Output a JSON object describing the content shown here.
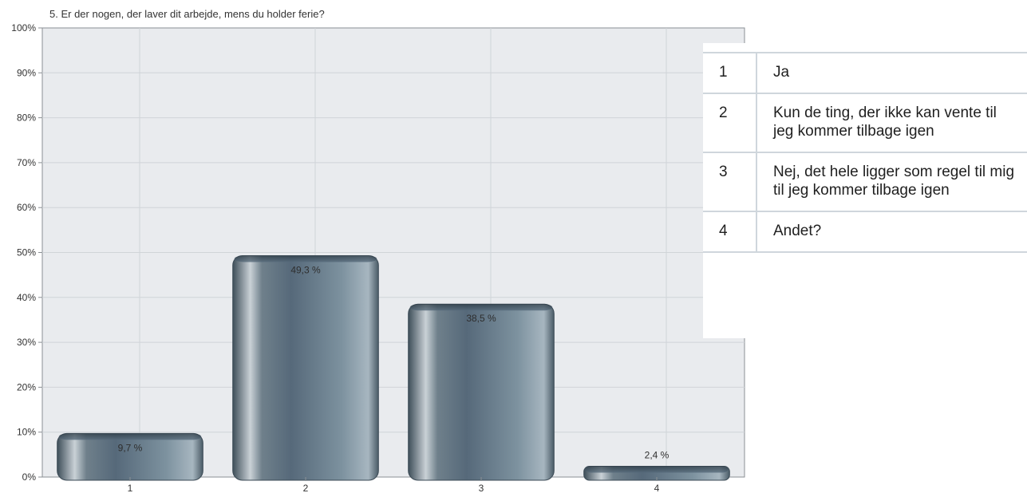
{
  "chart_data": {
    "type": "bar",
    "title": "5. Er der nogen, der laver dit arbejde, mens du holder ferie?",
    "categories": [
      "1",
      "2",
      "3",
      "4"
    ],
    "values": [
      9.7,
      49.3,
      38.5,
      2.4
    ],
    "data_labels": [
      "9,7 %",
      "49,3 %",
      "38,5 %",
      "2,4 %"
    ],
    "ylim": [
      0,
      100
    ],
    "yticks": [
      "0%",
      "10%",
      "20%",
      "30%",
      "40%",
      "50%",
      "60%",
      "70%",
      "80%",
      "90%",
      "100%"
    ],
    "grid": true,
    "colors": {
      "bar": "#5d707d",
      "bar_highlight": "#b9c3ca",
      "plot_bg": "#e9ebee",
      "grid": "#d0d4d8"
    }
  },
  "legend": [
    {
      "number": "1",
      "text": "Ja"
    },
    {
      "number": "2",
      "text": "Kun de ting, der ikke kan vente til jeg kommer tilbage igen"
    },
    {
      "number": "3",
      "text": "Nej, det hele ligger som regel til mig til jeg kommer tilbage igen"
    },
    {
      "number": "4",
      "text": "Andet?"
    }
  ]
}
